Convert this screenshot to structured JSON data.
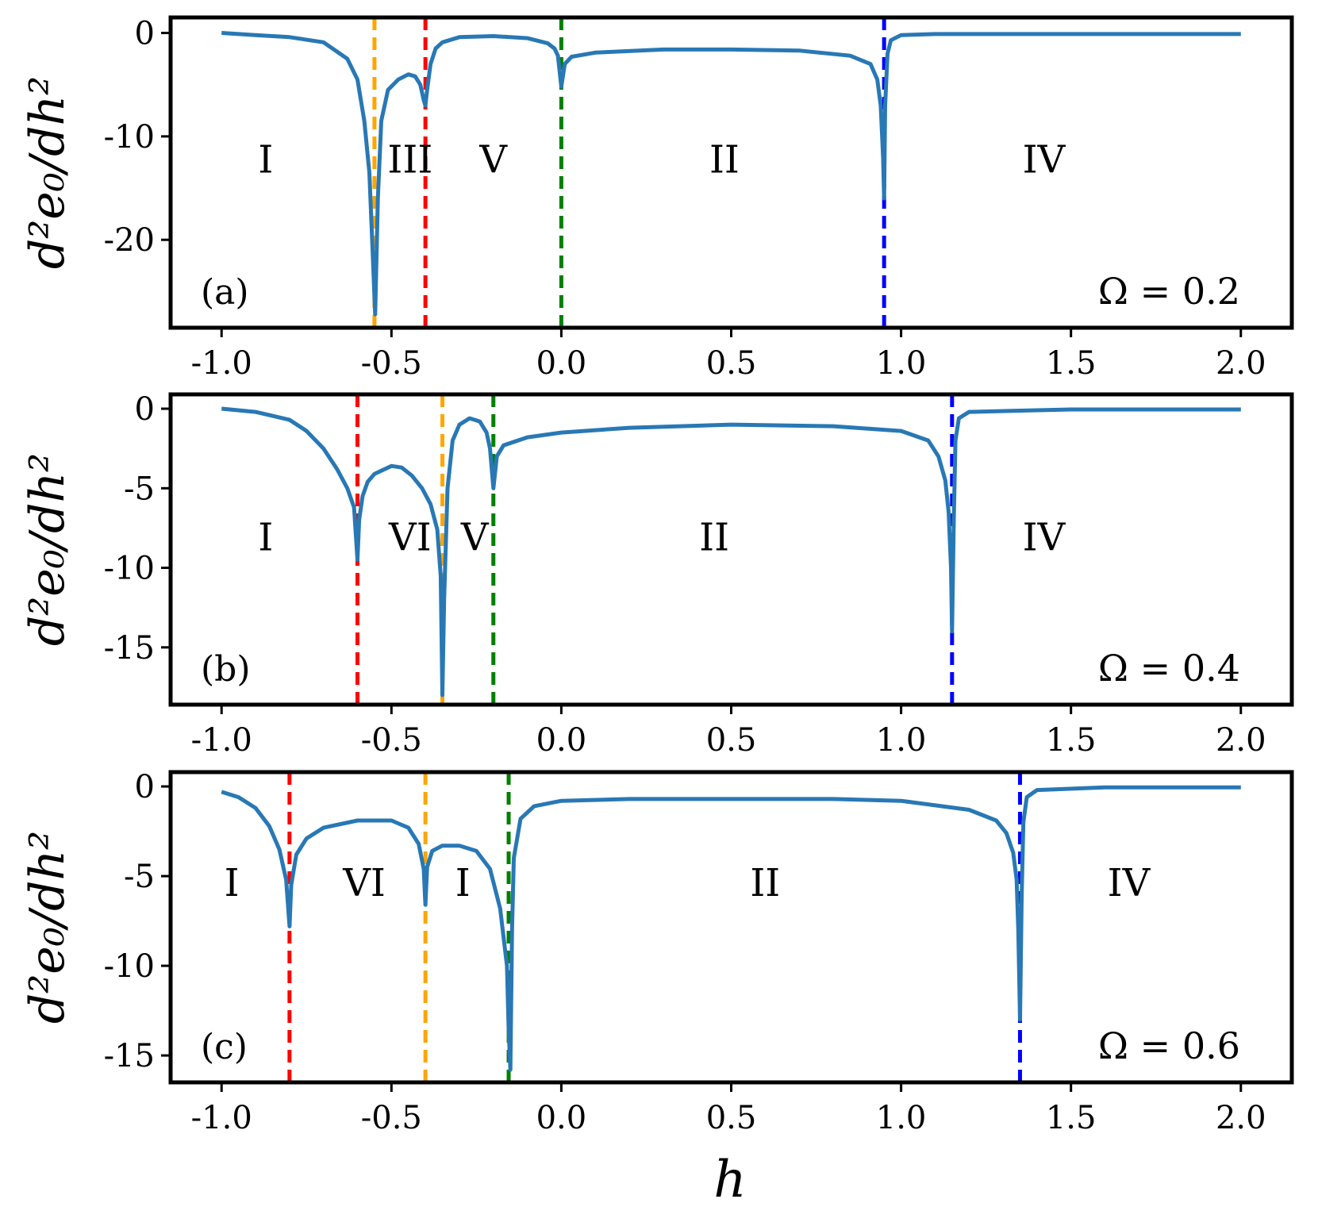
{
  "chart_data": [
    {
      "type": "line",
      "panel_label": "(a)",
      "annotation": "Ω = 0.2",
      "ylabel": "d²e₀/dh²",
      "xlabel": "",
      "xlim": [
        -1.15,
        2.15
      ],
      "ylim": [
        -28.5,
        1.5
      ],
      "x_ticks": [
        "-1.0",
        "-0.5",
        "0.0",
        "0.5",
        "1.0",
        "1.5",
        "2.0"
      ],
      "y_ticks": [
        "0",
        "-10",
        "-20"
      ],
      "y_tick_values": [
        0,
        -10,
        -20
      ],
      "curve_color": "#2878b5",
      "series": [
        {
          "x": [
            -1.0,
            -0.9,
            -0.8,
            -0.7,
            -0.63,
            -0.6,
            -0.58,
            -0.565,
            -0.555,
            -0.548,
            -0.54,
            -0.53,
            -0.51,
            -0.48,
            -0.45,
            -0.43,
            -0.415,
            -0.405,
            -0.4,
            -0.395,
            -0.385,
            -0.37,
            -0.35,
            -0.3,
            -0.2,
            -0.1,
            -0.04,
            -0.02,
            -0.01,
            0.0,
            0.01,
            0.03,
            0.1,
            0.3,
            0.5,
            0.7,
            0.85,
            0.91,
            0.93,
            0.94,
            0.947,
            0.95,
            0.953,
            0.96,
            0.97,
            1.0,
            1.1,
            1.5,
            2.0
          ],
          "y": [
            0.0,
            -0.2,
            -0.4,
            -0.9,
            -2.5,
            -4.5,
            -8.5,
            -13.5,
            -21.5,
            -27.2,
            -16.0,
            -8.5,
            -5.5,
            -4.5,
            -4.0,
            -4.2,
            -5.0,
            -6.5,
            -7.0,
            -5.5,
            -3.0,
            -1.5,
            -0.9,
            -0.4,
            -0.3,
            -0.5,
            -1.0,
            -1.5,
            -2.2,
            -5.2,
            -3.0,
            -2.3,
            -1.9,
            -1.6,
            -1.6,
            -1.7,
            -2.2,
            -3.0,
            -4.5,
            -7.0,
            -12.0,
            -16.0,
            -7.0,
            -2.0,
            -0.7,
            -0.2,
            -0.1,
            -0.1,
            -0.1
          ]
        }
      ],
      "vlines": [
        {
          "x": -0.55,
          "color": "#ffa500"
        },
        {
          "x": -0.4,
          "color": "#ff0000"
        },
        {
          "x": 0.0,
          "color": "#008000"
        },
        {
          "x": 0.95,
          "color": "#0000ff"
        }
      ],
      "regions": [
        {
          "label": "I",
          "x": -0.87,
          "y": -13.5
        },
        {
          "label": "III",
          "x": -0.445,
          "y": -13.5
        },
        {
          "label": "V",
          "x": -0.2,
          "y": -13.5
        },
        {
          "label": "II",
          "x": 0.48,
          "y": -13.5
        },
        {
          "label": "IV",
          "x": 1.42,
          "y": -13.5
        }
      ]
    },
    {
      "type": "line",
      "panel_label": "(b)",
      "annotation": "Ω = 0.4",
      "ylabel": "d²e₀/dh²",
      "xlabel": "",
      "xlim": [
        -1.15,
        2.15
      ],
      "ylim": [
        -18.6,
        0.9
      ],
      "x_ticks": [
        "-1.0",
        "-0.5",
        "0.0",
        "0.5",
        "1.0",
        "1.5",
        "2.0"
      ],
      "y_ticks": [
        "0",
        "-5",
        "-10",
        "-15"
      ],
      "y_tick_values": [
        0,
        -5,
        -10,
        -15
      ],
      "curve_color": "#2878b5",
      "series": [
        {
          "x": [
            -1.0,
            -0.9,
            -0.8,
            -0.75,
            -0.7,
            -0.66,
            -0.63,
            -0.61,
            -0.6,
            -0.595,
            -0.585,
            -0.57,
            -0.55,
            -0.5,
            -0.47,
            -0.44,
            -0.41,
            -0.385,
            -0.365,
            -0.355,
            -0.35,
            -0.345,
            -0.335,
            -0.32,
            -0.3,
            -0.27,
            -0.24,
            -0.22,
            -0.21,
            -0.2,
            -0.19,
            -0.17,
            -0.1,
            0.0,
            0.2,
            0.5,
            0.8,
            1.0,
            1.08,
            1.11,
            1.13,
            1.14,
            1.147,
            1.15,
            1.155,
            1.16,
            1.17,
            1.2,
            1.5,
            2.0
          ],
          "y": [
            0.0,
            -0.2,
            -0.7,
            -1.4,
            -2.5,
            -3.8,
            -5.0,
            -6.2,
            -9.5,
            -7.0,
            -5.5,
            -4.6,
            -4.1,
            -3.6,
            -3.7,
            -4.2,
            -5.0,
            -6.0,
            -7.6,
            -10.5,
            -18.0,
            -12.0,
            -5.0,
            -2.0,
            -1.0,
            -0.6,
            -0.8,
            -1.5,
            -2.5,
            -5.0,
            -3.0,
            -2.3,
            -1.8,
            -1.5,
            -1.2,
            -1.0,
            -1.1,
            -1.4,
            -2.0,
            -3.0,
            -4.5,
            -6.5,
            -10.0,
            -14.0,
            -7.0,
            -2.0,
            -0.6,
            -0.2,
            -0.05,
            -0.05
          ]
        }
      ],
      "vlines": [
        {
          "x": -0.6,
          "color": "#ff0000"
        },
        {
          "x": -0.35,
          "color": "#ffa500"
        },
        {
          "x": -0.2,
          "color": "#008000"
        },
        {
          "x": 1.15,
          "color": "#0000ff"
        }
      ],
      "regions": [
        {
          "label": "I",
          "x": -0.87,
          "y": -8.9
        },
        {
          "label": "VI",
          "x": -0.445,
          "y": -8.9
        },
        {
          "label": "V",
          "x": -0.255,
          "y": -8.9
        },
        {
          "label": "II",
          "x": 0.45,
          "y": -8.9
        },
        {
          "label": "IV",
          "x": 1.42,
          "y": -8.9
        }
      ]
    },
    {
      "type": "line",
      "panel_label": "(c)",
      "annotation": "Ω = 0.6",
      "ylabel": "d²e₀/dh²",
      "xlabel": "h",
      "xlim": [
        -1.15,
        2.15
      ],
      "ylim": [
        -16.5,
        0.8
      ],
      "x_ticks": [
        "-1.0",
        "-0.5",
        "0.0",
        "0.5",
        "1.0",
        "1.5",
        "2.0"
      ],
      "y_ticks": [
        "0",
        "-5",
        "-10",
        "-15"
      ],
      "y_tick_values": [
        0,
        -5,
        -10,
        -15
      ],
      "curve_color": "#2878b5",
      "series": [
        {
          "x": [
            -1.0,
            -0.95,
            -0.9,
            -0.86,
            -0.83,
            -0.81,
            -0.8,
            -0.795,
            -0.78,
            -0.75,
            -0.7,
            -0.6,
            -0.5,
            -0.45,
            -0.42,
            -0.405,
            -0.4,
            -0.395,
            -0.38,
            -0.35,
            -0.3,
            -0.25,
            -0.21,
            -0.18,
            -0.16,
            -0.155,
            -0.15,
            -0.145,
            -0.14,
            -0.12,
            -0.08,
            0.0,
            0.2,
            0.5,
            0.8,
            1.0,
            1.2,
            1.28,
            1.31,
            1.33,
            1.34,
            1.345,
            1.35,
            1.355,
            1.36,
            1.37,
            1.4,
            1.6,
            2.0
          ],
          "y": [
            -0.3,
            -0.6,
            -1.2,
            -2.2,
            -3.5,
            -5.2,
            -7.8,
            -5.5,
            -3.8,
            -2.9,
            -2.3,
            -1.9,
            -1.9,
            -2.3,
            -3.2,
            -4.6,
            -6.6,
            -4.5,
            -3.6,
            -3.3,
            -3.3,
            -3.6,
            -4.6,
            -6.8,
            -10.0,
            -13.5,
            -15.8,
            -8.0,
            -4.0,
            -1.8,
            -1.1,
            -0.8,
            -0.7,
            -0.7,
            -0.7,
            -0.8,
            -1.3,
            -1.9,
            -2.6,
            -3.7,
            -5.2,
            -8.0,
            -13.0,
            -6.0,
            -2.0,
            -0.6,
            -0.2,
            -0.05,
            -0.05
          ]
        }
      ],
      "vlines": [
        {
          "x": -0.8,
          "color": "#ff0000"
        },
        {
          "x": -0.4,
          "color": "#ffa500"
        },
        {
          "x": -0.155,
          "color": "#008000"
        },
        {
          "x": 1.35,
          "color": "#0000ff"
        }
      ],
      "regions": [
        {
          "label": "I",
          "x": -0.97,
          "y": -6.1
        },
        {
          "label": "VI",
          "x": -0.58,
          "y": -6.1
        },
        {
          "label": "I",
          "x": -0.29,
          "y": -6.1
        },
        {
          "label": "II",
          "x": 0.6,
          "y": -6.1
        },
        {
          "label": "IV",
          "x": 1.67,
          "y": -6.1
        }
      ]
    }
  ]
}
